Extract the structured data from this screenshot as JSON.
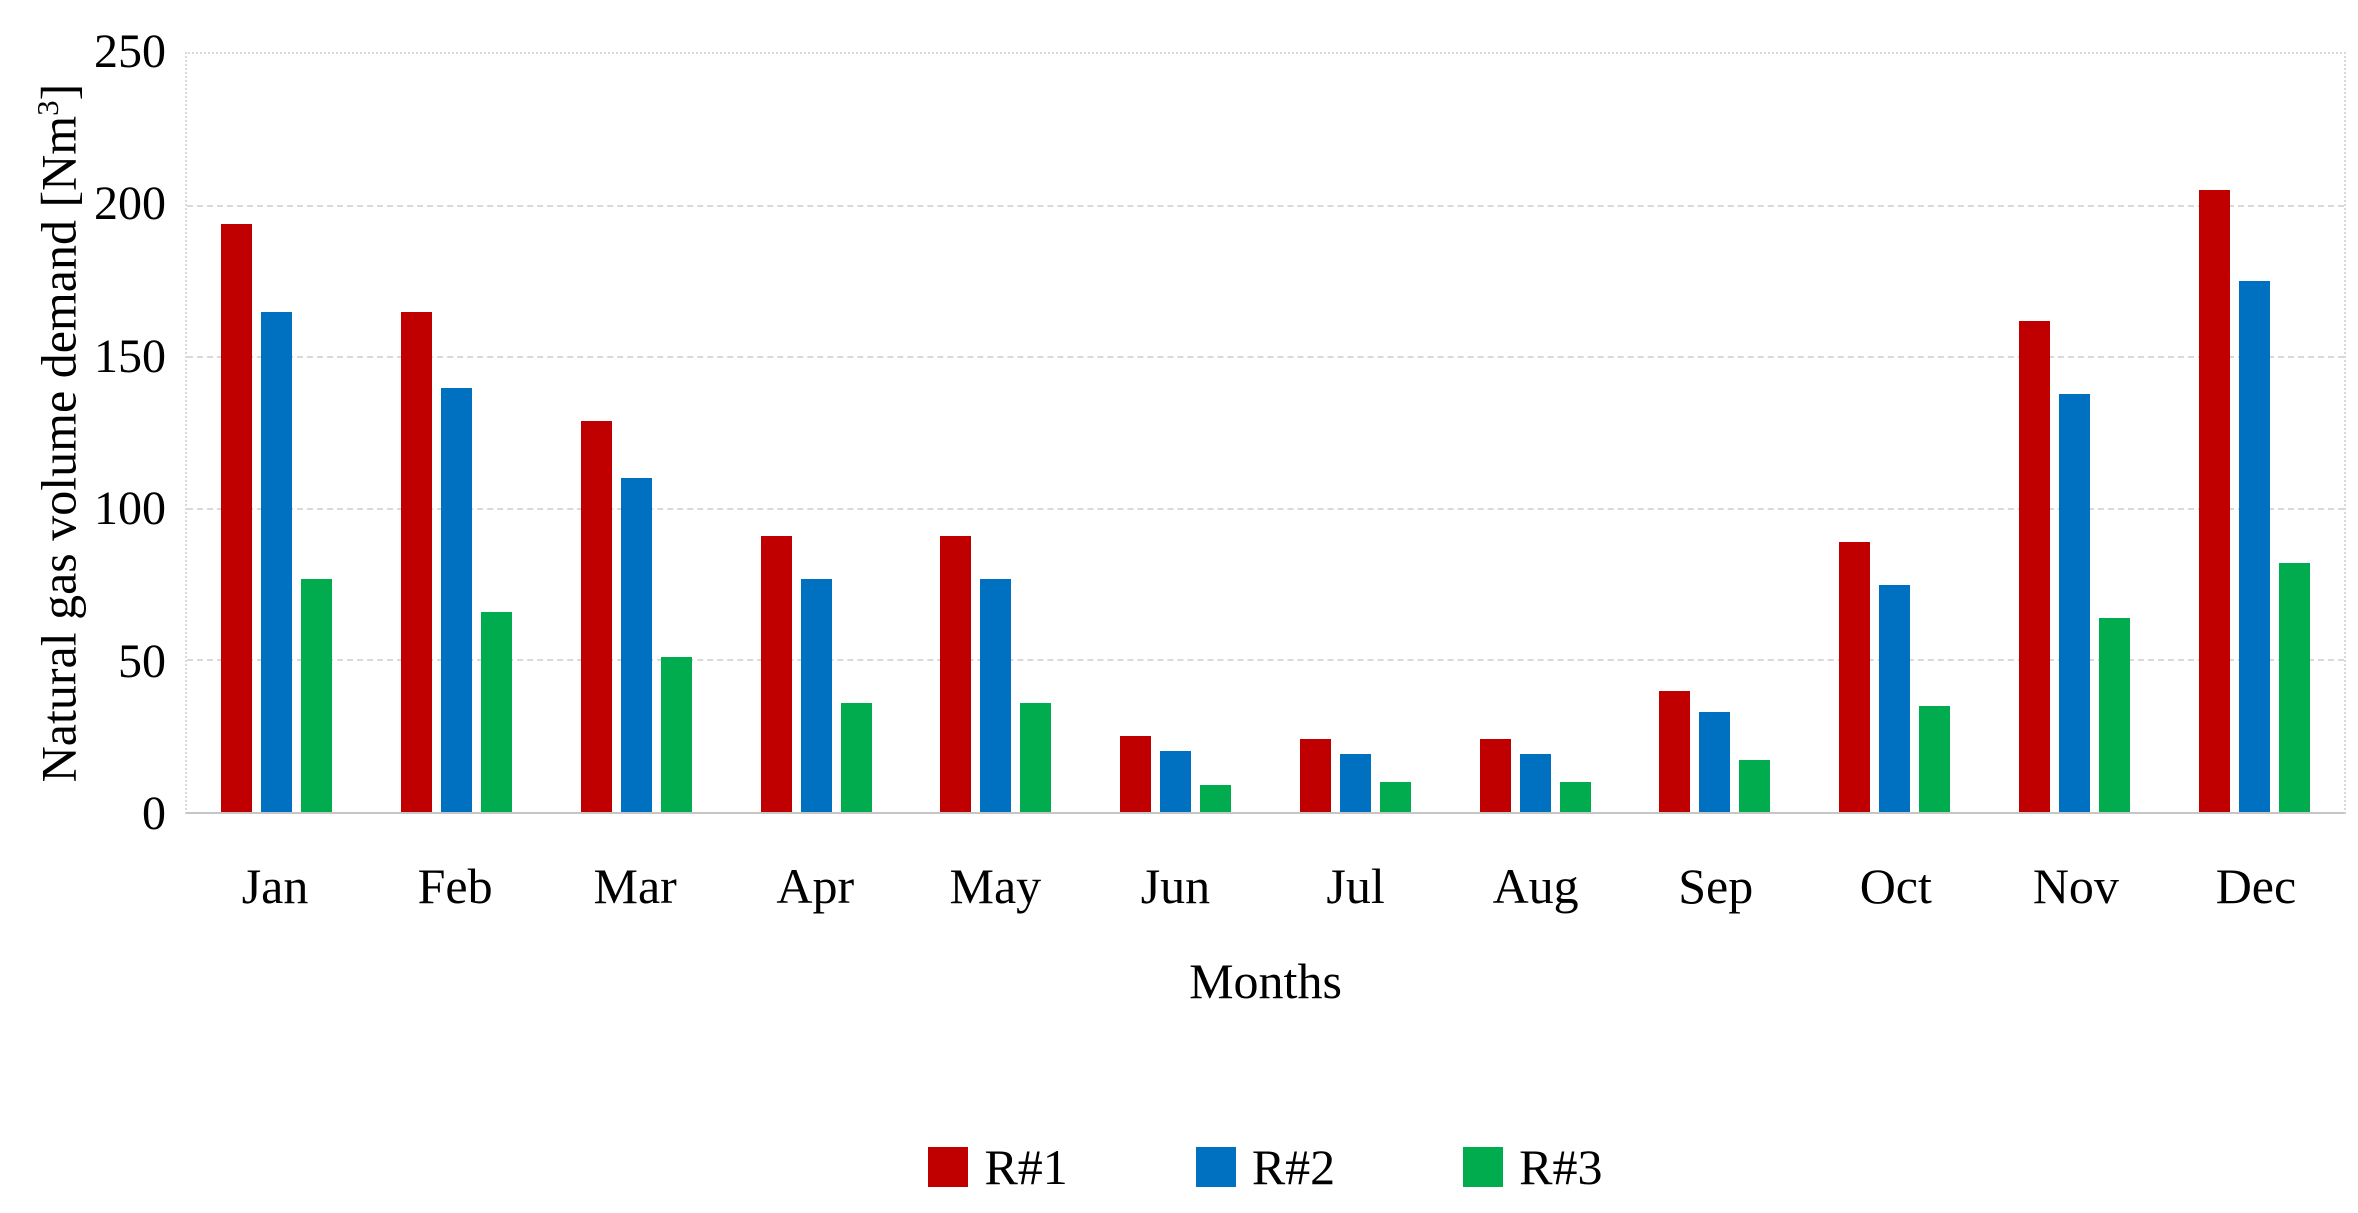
{
  "chart_data": {
    "type": "bar",
    "title": "",
    "categories": [
      "Jan",
      "Feb",
      "Mar",
      "Apr",
      "May",
      "Jun",
      "Jul",
      "Aug",
      "Sep",
      "Oct",
      "Nov",
      "Dec"
    ],
    "series": [
      {
        "name": "R#1",
        "color": "#C00000",
        "values": [
          194,
          165,
          129,
          91,
          91,
          25,
          24,
          24,
          40,
          89,
          162,
          205
        ]
      },
      {
        "name": "R#2",
        "color": "#0070C0",
        "values": [
          165,
          140,
          110,
          77,
          77,
          20,
          19,
          19,
          33,
          75,
          138,
          175
        ]
      },
      {
        "name": "R#3",
        "color": "#00AC4E",
        "values": [
          77,
          66,
          51,
          36,
          36,
          9,
          10,
          10,
          17,
          35,
          64,
          82
        ]
      }
    ],
    "xlabel": "Months",
    "ylabel": "Natural gas volume demand [Nm³]",
    "ylabel_parts": {
      "prefix": "Natural gas volume demand [Nm",
      "sup": "3",
      "suffix": "]"
    },
    "ylim": [
      0,
      250
    ],
    "ytick_step": 50,
    "yticks": [
      0,
      50,
      100,
      150,
      200,
      250
    ],
    "grid": "horizontal-dashed",
    "legend_position": "bottom"
  },
  "colors": {
    "gridline": "#D9D9D9",
    "axis": "#C6C6C6",
    "text": "#000000",
    "background": "#FFFFFF"
  }
}
